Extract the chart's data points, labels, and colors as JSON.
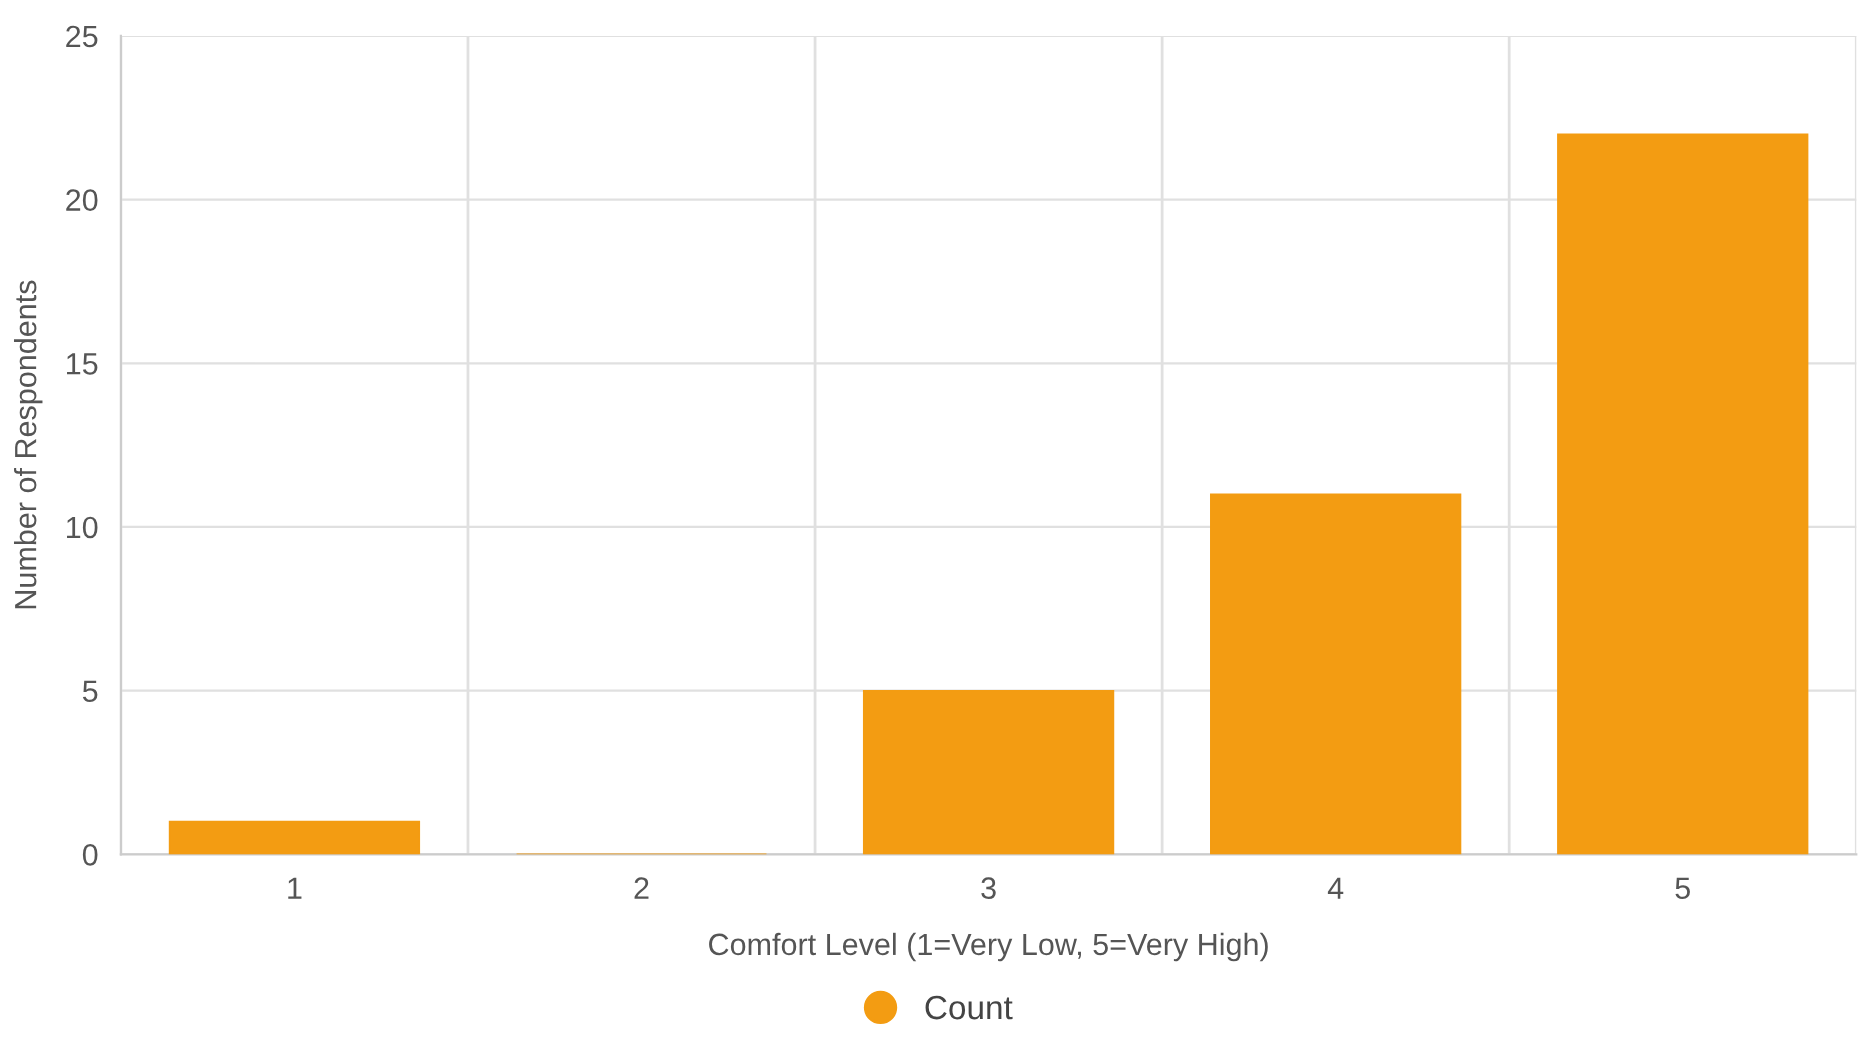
{
  "chart_data": {
    "type": "bar",
    "xlabel": "Comfort Level (1=Very Low, 5=Very High)",
    "ylabel": "Number of Respondents",
    "categories": [
      "1",
      "2",
      "3",
      "4",
      "5"
    ],
    "series": [
      {
        "name": "Count",
        "color": "#f39c12",
        "values": [
          1,
          0,
          5,
          11,
          22
        ]
      }
    ],
    "ylim": [
      0,
      25
    ],
    "yticks": [
      0,
      5,
      10,
      15,
      20,
      25
    ],
    "grid": true,
    "legend": "bottom"
  }
}
